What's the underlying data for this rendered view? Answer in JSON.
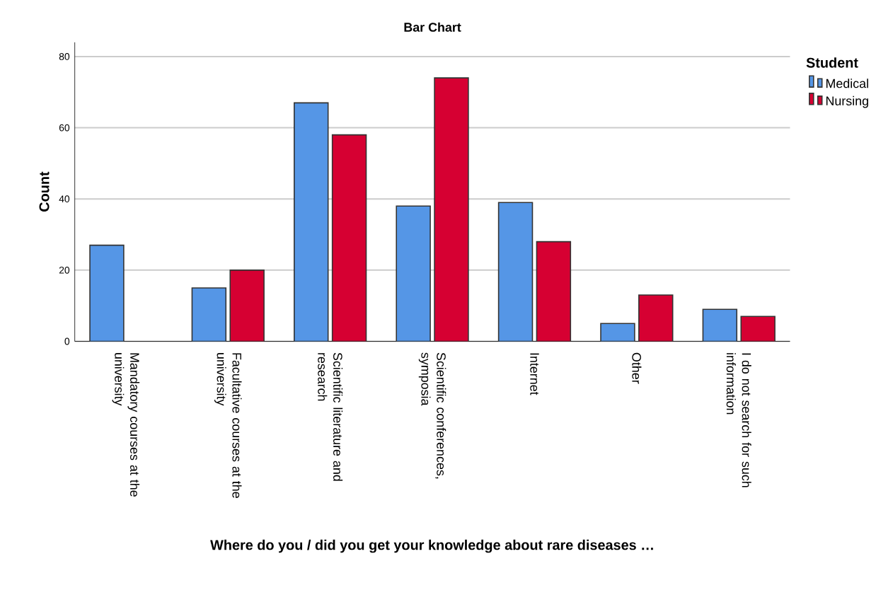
{
  "chart_data": {
    "type": "bar",
    "title": "Bar Chart",
    "xlabel": "Where do you / did you get your knowledge about rare diseases …",
    "ylabel": "Count",
    "legend_title": "Student",
    "categories": [
      "Mandatory courses at the university",
      "Facultative courses at the university",
      "Scientific literature and research",
      "Scientific conferences, symposia",
      "Internet",
      "Other",
      "I do not search for such information"
    ],
    "series": [
      {
        "name": "Medical",
        "color": "#5596e6",
        "values": [
          27,
          15,
          67,
          38,
          39,
          5,
          9
        ]
      },
      {
        "name": "Nursing",
        "color": "#d60032",
        "values": [
          null,
          20,
          58,
          74,
          28,
          13,
          7
        ]
      }
    ],
    "ylim": [
      0,
      84
    ],
    "yticks": [
      0,
      20,
      40,
      60,
      80
    ],
    "grid": "y",
    "legend": "top right"
  }
}
